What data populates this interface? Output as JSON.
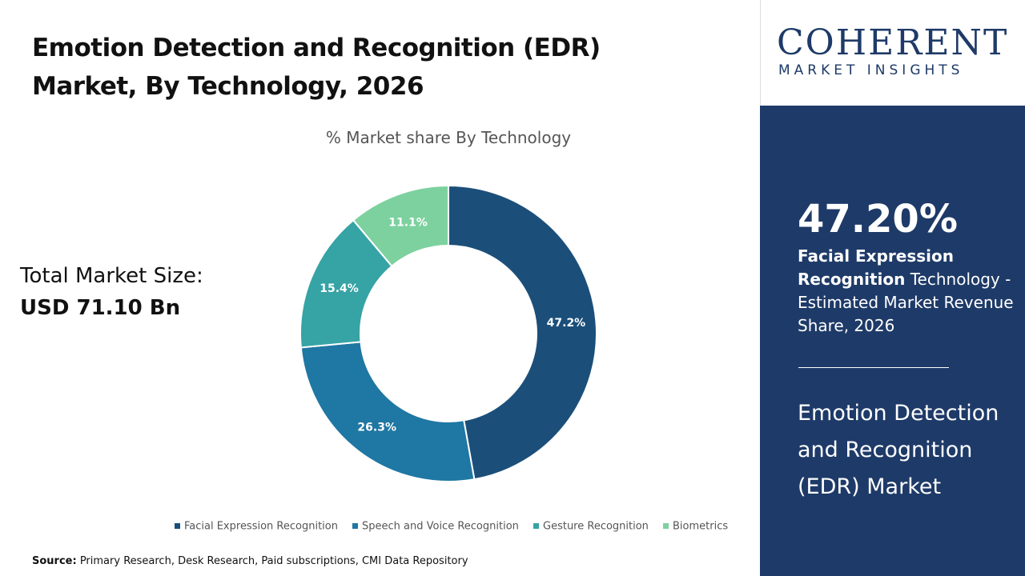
{
  "chart_data": {
    "type": "donut",
    "title": [
      "Emotion Detection and Recognition (EDR)",
      "Market, By Technology, 2026"
    ],
    "subtitle": "% Market share By Technology",
    "categories": [
      "Facial Expression Recognition",
      "Speech and Voice Recognition",
      "Gesture Recognition",
      "Biometrics"
    ],
    "values": [
      47.2,
      26.3,
      15.4,
      11.1
    ],
    "value_labels": [
      "47.2%",
      "26.3%",
      "15.4%",
      "11.1%"
    ],
    "colors": [
      "#1b4f7a",
      "#1f77a3",
      "#36a3a5",
      "#7dd19f"
    ]
  },
  "market_size": {
    "label": "Total Market Size:",
    "value": "USD 71.10 Bn"
  },
  "logo": {
    "name": "COHERENT",
    "tagline": "MARKET INSIGHTS"
  },
  "panel": {
    "share": "47.20%",
    "segment": "Facial Expression Recognition",
    "description": " Technology - Estimated Market Revenue Share, 2026",
    "market": "Emotion Detection and Recognition (EDR) Market"
  },
  "source": {
    "label": "Source:",
    "text": " Primary Research, Desk Research, Paid subscriptions, CMI Data Repository"
  }
}
